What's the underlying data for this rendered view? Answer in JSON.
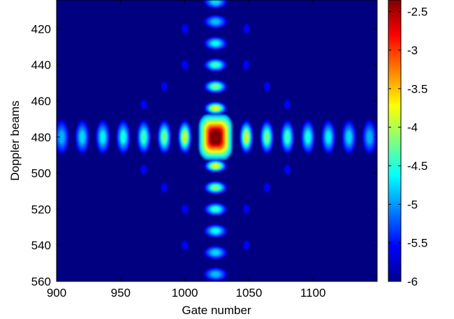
{
  "chart_data": {
    "type": "heatmap",
    "title": "",
    "xlabel": "Gate number",
    "ylabel": "Doppler beams",
    "xlim": [
      900,
      1150
    ],
    "ylim": [
      404,
      560
    ],
    "y_reversed": true,
    "x_ticks": [
      "900",
      "950",
      "1000",
      "1050",
      "1100"
    ],
    "y_ticks": [
      "420",
      "440",
      "460",
      "480",
      "500",
      "520",
      "540",
      "560"
    ],
    "colorbar": {
      "colormap": "jet",
      "range": [
        -6,
        -2.35
      ],
      "ticks": [
        "-2.5",
        "-3",
        "-3.5",
        "-4",
        "-4.5",
        "-5",
        "-5.5",
        "-6"
      ]
    },
    "peak": {
      "gate": 1024,
      "beam": 480,
      "value": -2.35
    },
    "floor_value": -6,
    "horizontal_lobes": {
      "beam": 480,
      "gates": [
        904,
        920,
        936,
        952,
        968,
        984,
        1000,
        1048,
        1064,
        1080,
        1096,
        1112,
        1128,
        1144
      ],
      "values": [
        -4.85,
        -4.7,
        -4.6,
        -4.5,
        -4.35,
        -4.15,
        -3.8,
        -3.8,
        -4.15,
        -4.35,
        -4.5,
        -4.6,
        -4.7,
        -4.85
      ]
    },
    "vertical_lobes": {
      "gate": 1024,
      "beams": [
        405,
        416,
        428,
        440,
        452,
        464,
        496,
        508,
        520,
        532,
        544,
        556
      ],
      "values": [
        -4.7,
        -4.8,
        -4.55,
        -4.35,
        -4.1,
        -3.7,
        -3.7,
        -4.1,
        -4.4,
        -4.55,
        -4.7,
        -4.8
      ]
    }
  }
}
